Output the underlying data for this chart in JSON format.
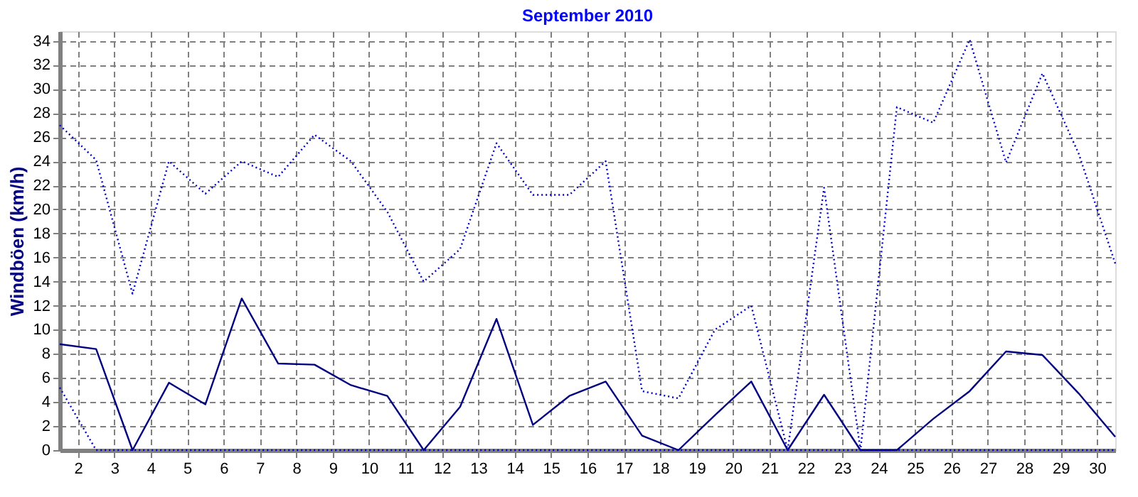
{
  "chart_data": {
    "type": "line",
    "title": "September 2010",
    "ylabel": "Windböen  (km/h)",
    "x": [
      1.5,
      2.5,
      3.5,
      4.5,
      5.5,
      6.5,
      7.5,
      8.5,
      9.5,
      10.5,
      11.5,
      12.5,
      13.5,
      14.5,
      15.5,
      16.5,
      17.5,
      18.5,
      19.5,
      20.5,
      21.5,
      22.5,
      23.5,
      24.5,
      25.5,
      26.5,
      27.5,
      28.5,
      29.5,
      30.5
    ],
    "series": [
      {
        "color": "#000080",
        "line_style": "solid",
        "values": [
          8.8,
          8.4,
          0,
          5.6,
          3.8,
          12.6,
          7.2,
          7.1,
          5.4,
          4.5,
          0,
          3.6,
          10.9,
          2.1,
          4.5,
          5.7,
          1.2,
          0,
          2.9,
          5.7,
          0,
          4.6,
          0,
          0,
          2.6,
          4.9,
          8.2,
          7.9,
          4.7,
          1.1
        ]
      },
      {
        "color": "#0000cc",
        "line_style": "dotted",
        "values": [
          27.0,
          24.1,
          13.0,
          24.0,
          21.3,
          24.0,
          22.7,
          26.2,
          24.0,
          19.8,
          14.0,
          16.7,
          25.5,
          21.2,
          21.2,
          24.0,
          4.9,
          4.3,
          10.0,
          12.0,
          0,
          21.8,
          0,
          28.5,
          27.2,
          34.1,
          23.9,
          31.3,
          24.6,
          15.5
        ]
      },
      {
        "color": "#0000cc",
        "line_style": "dotted",
        "values": [
          5.2,
          0,
          0,
          0,
          0,
          0,
          0,
          0,
          0,
          0,
          0,
          0,
          0,
          0,
          0,
          0,
          0,
          0,
          0,
          0,
          0,
          0,
          0,
          0,
          0,
          0,
          0,
          0,
          0,
          0
        ]
      }
    ],
    "xlim": [
      1.5,
      30.5
    ],
    "xticks": [
      2,
      3,
      4,
      5,
      6,
      7,
      8,
      9,
      10,
      11,
      12,
      13,
      14,
      15,
      16,
      17,
      18,
      19,
      20,
      21,
      22,
      23,
      24,
      25,
      26,
      27,
      28,
      29,
      30
    ],
    "ylim": [
      0,
      34.8
    ],
    "yticks": [
      0,
      2,
      4,
      6,
      8,
      10,
      12,
      14,
      16,
      18,
      20,
      22,
      24,
      26,
      28,
      30,
      32,
      34
    ],
    "grid": true,
    "marker": "none"
  }
}
